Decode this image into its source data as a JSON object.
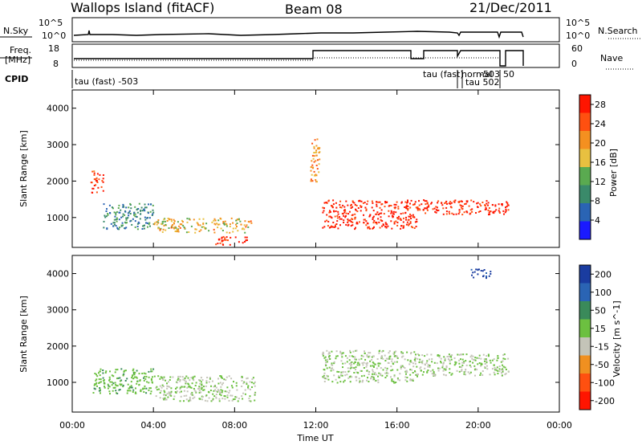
{
  "header": {
    "station": "Wallops Island (fitACF)",
    "beam": "Beam 08",
    "date": "21/Dec/2011"
  },
  "status_panels": {
    "nsky_label": "N.Sky",
    "nsearch_label": "N.Search",
    "noise_ticks_left": [
      "10^5",
      "10^0"
    ],
    "noise_ticks_right": [
      "10^5",
      "10^0"
    ],
    "freq_label_top": "Freq.",
    "freq_label_bottom": "[MHz]",
    "freq_ticks": [
      "18",
      "8"
    ],
    "nave_label": "Nave",
    "nave_ticks": [
      "60",
      "0"
    ],
    "cpid_label": "CPID",
    "cpid_entries": [
      {
        "text": "tau (fast) -503"
      },
      {
        "text": "tau (fast)"
      },
      {
        "text": "normal"
      },
      {
        "text": "-503"
      },
      {
        "text": "50"
      },
      {
        "text": "tau 502"
      }
    ]
  },
  "chart_data": [
    {
      "type": "heatmap",
      "title": "",
      "ylabel": "Slant Range [km]",
      "xlabel": "",
      "ylim": [
        180,
        4500
      ],
      "xlim": [
        0,
        24
      ],
      "x_tick_labels": [
        "00:00",
        "04:00",
        "08:00",
        "12:00",
        "16:00",
        "20:00",
        "00:00"
      ],
      "y_ticks": [
        1000,
        2000,
        3000,
        4000
      ],
      "colorbar": {
        "label": "Power [dB]",
        "range": [
          0,
          30
        ],
        "ticks": [
          4,
          8,
          12,
          16,
          20,
          24,
          28
        ],
        "colors": [
          "#1a1aff",
          "#2a64b4",
          "#3a8a6a",
          "#5aaa50",
          "#e8c040",
          "#f49020",
          "#ff5010",
          "#ff1500"
        ]
      },
      "regions": [
        {
          "t": [
            0.9,
            1.5
          ],
          "r": [
            1700,
            2300
          ],
          "value": 27
        },
        {
          "t": [
            1.5,
            4.0
          ],
          "r": [
            700,
            1400
          ],
          "value": 9
        },
        {
          "t": [
            4.0,
            8.8
          ],
          "r": [
            600,
            1000
          ],
          "value": 18
        },
        {
          "t": [
            7.0,
            8.6
          ],
          "r": [
            250,
            500
          ],
          "value": 28
        },
        {
          "t": [
            12.3,
            17.0
          ],
          "r": [
            700,
            1500
          ],
          "value": 28
        },
        {
          "t": [
            17.0,
            21.5
          ],
          "r": [
            1100,
            1500
          ],
          "value": 28
        },
        {
          "t": [
            11.7,
            12.2
          ],
          "r": [
            2000,
            3200
          ],
          "value": 20
        }
      ]
    },
    {
      "type": "heatmap",
      "title": "",
      "ylabel": "Slant Range [km]",
      "xlabel": "Time UT",
      "ylim": [
        180,
        4500
      ],
      "xlim": [
        0,
        24
      ],
      "x_tick_labels": [
        "00:00",
        "04:00",
        "08:00",
        "12:00",
        "16:00",
        "20:00",
        "00:00"
      ],
      "y_ticks": [
        1000,
        2000,
        3000,
        4000
      ],
      "colorbar": {
        "label": "Velocity [m s^-1]",
        "range": [
          -250,
          250
        ],
        "ticks": [
          200,
          100,
          50,
          15,
          -15,
          -50,
          -100,
          -200
        ],
        "colors": [
          "#1a3ca0",
          "#2a64b4",
          "#3a8a5a",
          "#6cc040",
          "#c4c4b8",
          "#f09020",
          "#ff5010",
          "#ff1500"
        ]
      },
      "regions": [
        {
          "t": [
            1.0,
            4.0
          ],
          "r": [
            700,
            1400
          ],
          "value": 50
        },
        {
          "t": [
            4.0,
            9.0
          ],
          "r": [
            500,
            1200
          ],
          "value": 0
        },
        {
          "t": [
            12.3,
            17.0
          ],
          "r": [
            1000,
            1900
          ],
          "value": 0
        },
        {
          "t": [
            17.0,
            21.5
          ],
          "r": [
            1200,
            1800
          ],
          "value": 0
        },
        {
          "t": [
            19.5,
            20.6
          ],
          "r": [
            3900,
            4150
          ],
          "value": 200
        }
      ]
    }
  ]
}
